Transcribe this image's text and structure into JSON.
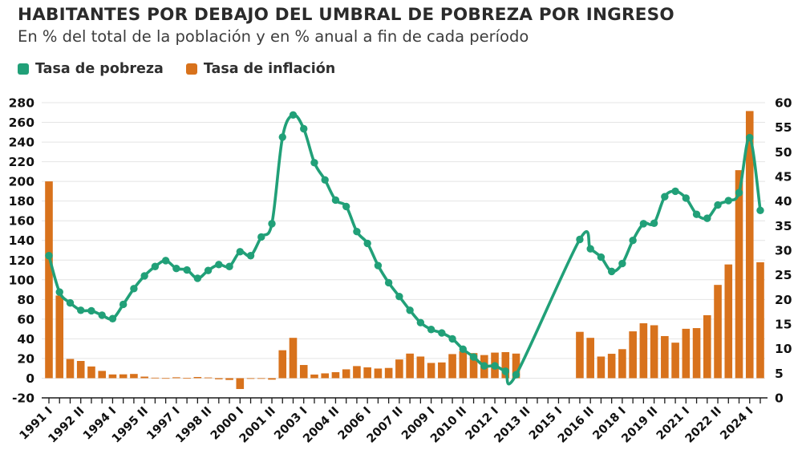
{
  "header": {
    "title": "HABITANTES POR DEBAJO DEL UMBRAL DE POBREZA POR INGRESO",
    "subtitle": "En % del total de la población y en % anual a fin de cada período"
  },
  "legend": {
    "poverty_label": "Tasa de pobreza",
    "inflation_label": "Tasa de inflación"
  },
  "colors": {
    "poverty_line": "#21A078",
    "inflation_bar": "#D8721C",
    "grid": "#e4e4e4",
    "axis": "#1a1a1a",
    "tick_text": "#111111"
  },
  "chart_data": {
    "type": "bar+line",
    "x_start": "1991 I",
    "x_end": "2024 II",
    "x_unit": "semester",
    "x_tick_labels": [
      "1991 I",
      "1992 II",
      "1994 I",
      "1995 II",
      "1997 I",
      "1998 II",
      "2000 I",
      "2001 II",
      "2003 I",
      "2004 II",
      "2006 I",
      "2007 II",
      "2009 I",
      "2010 II",
      "2012 I",
      "2013 II",
      "2015 I",
      "2016 II",
      "2018 I",
      "2019 II",
      "2021 I",
      "2022 II",
      "2024 I"
    ],
    "x_tick_every": 3,
    "axes": {
      "left": {
        "min": -20,
        "max": 280,
        "step": 20
      },
      "right": {
        "min": 0,
        "max": 60,
        "step": 5
      }
    },
    "grid": "horizontal",
    "legend_position": "top-left",
    "series": [
      {
        "name": "Tasa de pobreza",
        "type": "line",
        "axis": "right",
        "color": "#21A078",
        "values": [
          28.9,
          21.5,
          19.3,
          17.8,
          17.7,
          16.8,
          16.1,
          19.0,
          22.2,
          24.8,
          26.7,
          27.9,
          26.3,
          26.0,
          24.3,
          25.9,
          27.1,
          26.7,
          29.7,
          28.9,
          32.7,
          35.4,
          53.0,
          57.5,
          54.7,
          47.8,
          44.3,
          40.2,
          38.9,
          33.8,
          31.4,
          26.9,
          23.4,
          20.6,
          17.8,
          15.3,
          13.9,
          13.2,
          12.0,
          9.9,
          8.3,
          6.5,
          6.5,
          5.4,
          4.7,
          null,
          null,
          null,
          null,
          null,
          32.2,
          30.3,
          28.6,
          25.7,
          27.3,
          32.0,
          35.4,
          35.5,
          40.9,
          42.0,
          40.6,
          37.3,
          36.5,
          39.2,
          40.1,
          41.7,
          52.9,
          38.1
        ]
      },
      {
        "name": "Tasa de inflación",
        "type": "bar",
        "axis": "left",
        "color": "#D8721C",
        "values": [
          200,
          84,
          19.5,
          17.5,
          11.9,
          7.4,
          3.8,
          3.9,
          4.3,
          1.6,
          0.5,
          0.1,
          0.9,
          0.3,
          1.2,
          0.7,
          -1.1,
          -1.8,
          -11,
          -0.7,
          -0.4,
          -1.5,
          28.4,
          41.0,
          13.4,
          3.7,
          4.9,
          6.1,
          9.0,
          12.3,
          11.0,
          9.8,
          10.4,
          19.0,
          25.0,
          22.0,
          15.5,
          16.0,
          24.5,
          27.5,
          25.5,
          23.5,
          26.0,
          26.5,
          25.0,
          null,
          null,
          null,
          null,
          null,
          47.1,
          41.0,
          22.0,
          24.8,
          29.5,
          47.6,
          55.8,
          53.8,
          42.8,
          36.1,
          50.2,
          50.9,
          64.0,
          94.8,
          115.6,
          211.4,
          271.5,
          117.8
        ]
      }
    ]
  }
}
